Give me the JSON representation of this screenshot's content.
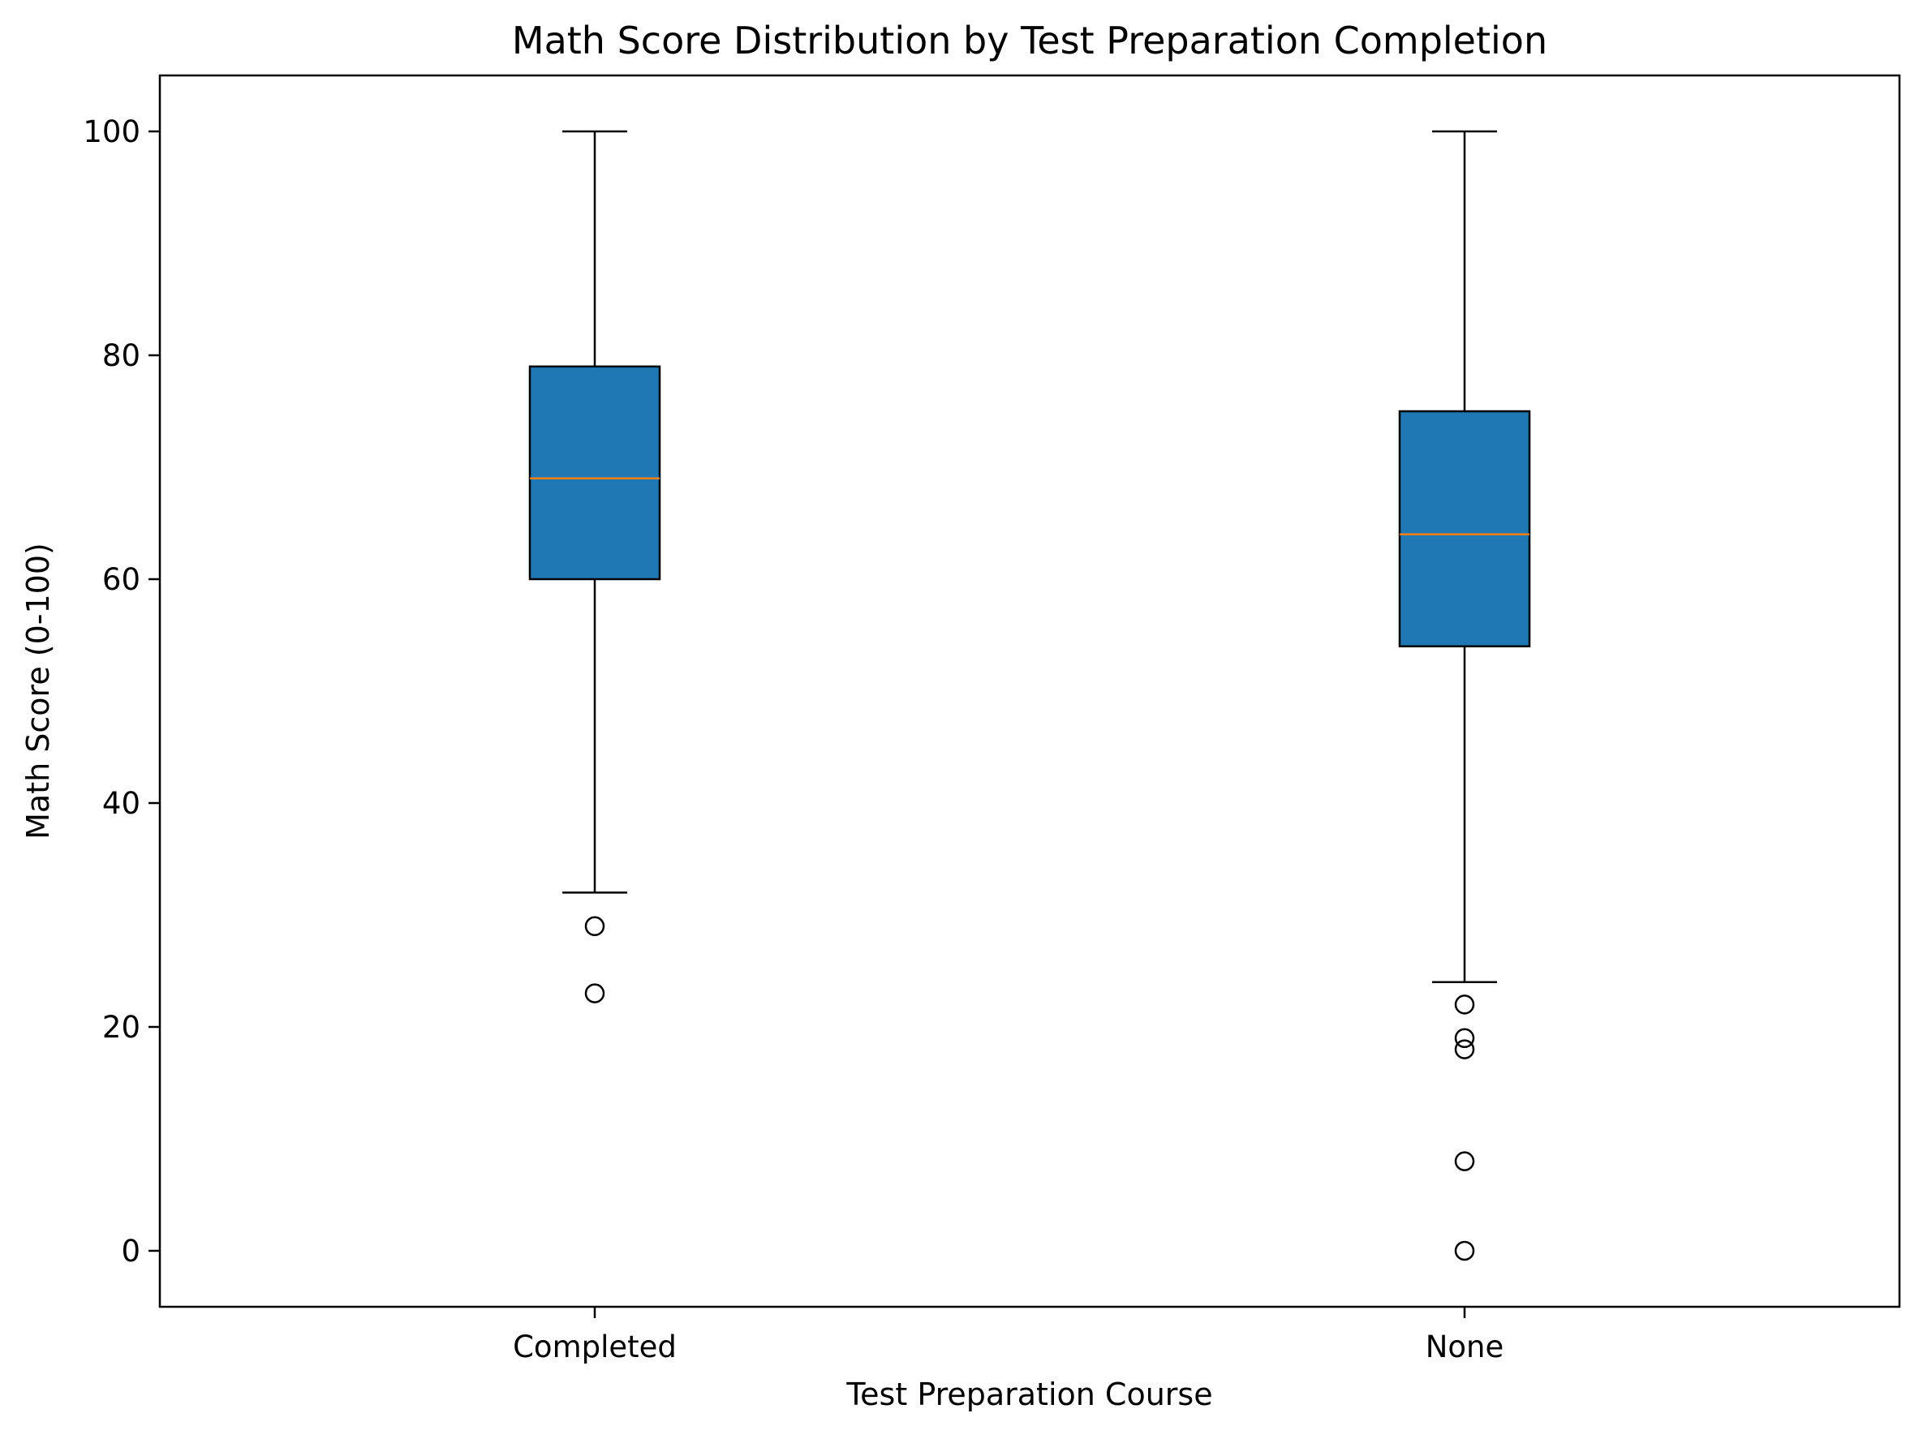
{
  "chart_data": {
    "type": "box",
    "title": "Math Score Distribution by Test Preparation Completion",
    "xlabel": "Test Preparation Course",
    "ylabel": "Math Score (0-100)",
    "categories": [
      "Completed",
      "None"
    ],
    "ylim": [
      -5,
      105
    ],
    "yticks": [
      0,
      20,
      40,
      60,
      80,
      100
    ],
    "ytick_labels": [
      "0",
      "20",
      "40",
      "60",
      "80",
      "100"
    ],
    "grid": false,
    "boxes": [
      {
        "category": "Completed",
        "whisker_low": 32,
        "q1": 60,
        "median": 69,
        "q3": 79,
        "whisker_high": 100,
        "outliers": [
          29,
          23
        ]
      },
      {
        "category": "None",
        "whisker_low": 24,
        "q1": 54,
        "median": 64,
        "q3": 75,
        "whisker_high": 100,
        "outliers": [
          22,
          19,
          18,
          8,
          0
        ]
      }
    ],
    "colors": {
      "box_fill": "#1f77b4",
      "median": "#ff7f0e",
      "edge": "#000000"
    }
  }
}
